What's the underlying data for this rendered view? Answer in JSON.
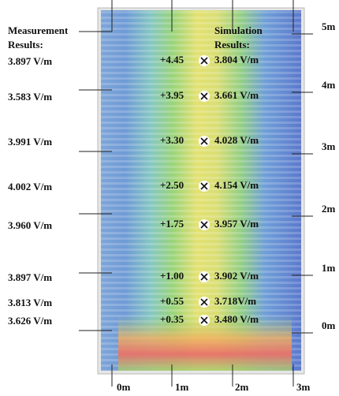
{
  "labels": {
    "measurement_title": [
      "Measurement",
      "Results:"
    ],
    "simulation_title": [
      "Simulation",
      "Results:"
    ]
  },
  "x_axis": [
    "0m",
    "1m",
    "2m",
    "3m"
  ],
  "y_axis": [
    "5m",
    "4m",
    "3m",
    "2m",
    "1m",
    "0m"
  ],
  "measurements": [
    "3.897 V/m",
    "3.583 V/m",
    "3.991 V/m",
    "4.002 V/m",
    "3.960 V/m",
    "3.897 V/m",
    "3.813 V/m",
    "3.626 V/m"
  ],
  "points": [
    {
      "height": "+4.45",
      "simulated": "3.804 V/m"
    },
    {
      "height": "+3.95",
      "simulated": "3.661 V/m"
    },
    {
      "height": "+3.30",
      "simulated": "4.028 V/m"
    },
    {
      "height": "+2.50",
      "simulated": "4.154 V/m"
    },
    {
      "height": "+1.75",
      "simulated": "3.957 V/m"
    },
    {
      "height": "+1.00",
      "simulated": "3.902 V/m"
    },
    {
      "height": "+0.55",
      "simulated": "3.718V/m"
    },
    {
      "height": "+0.35",
      "simulated": "3.480 V/m"
    }
  ]
}
